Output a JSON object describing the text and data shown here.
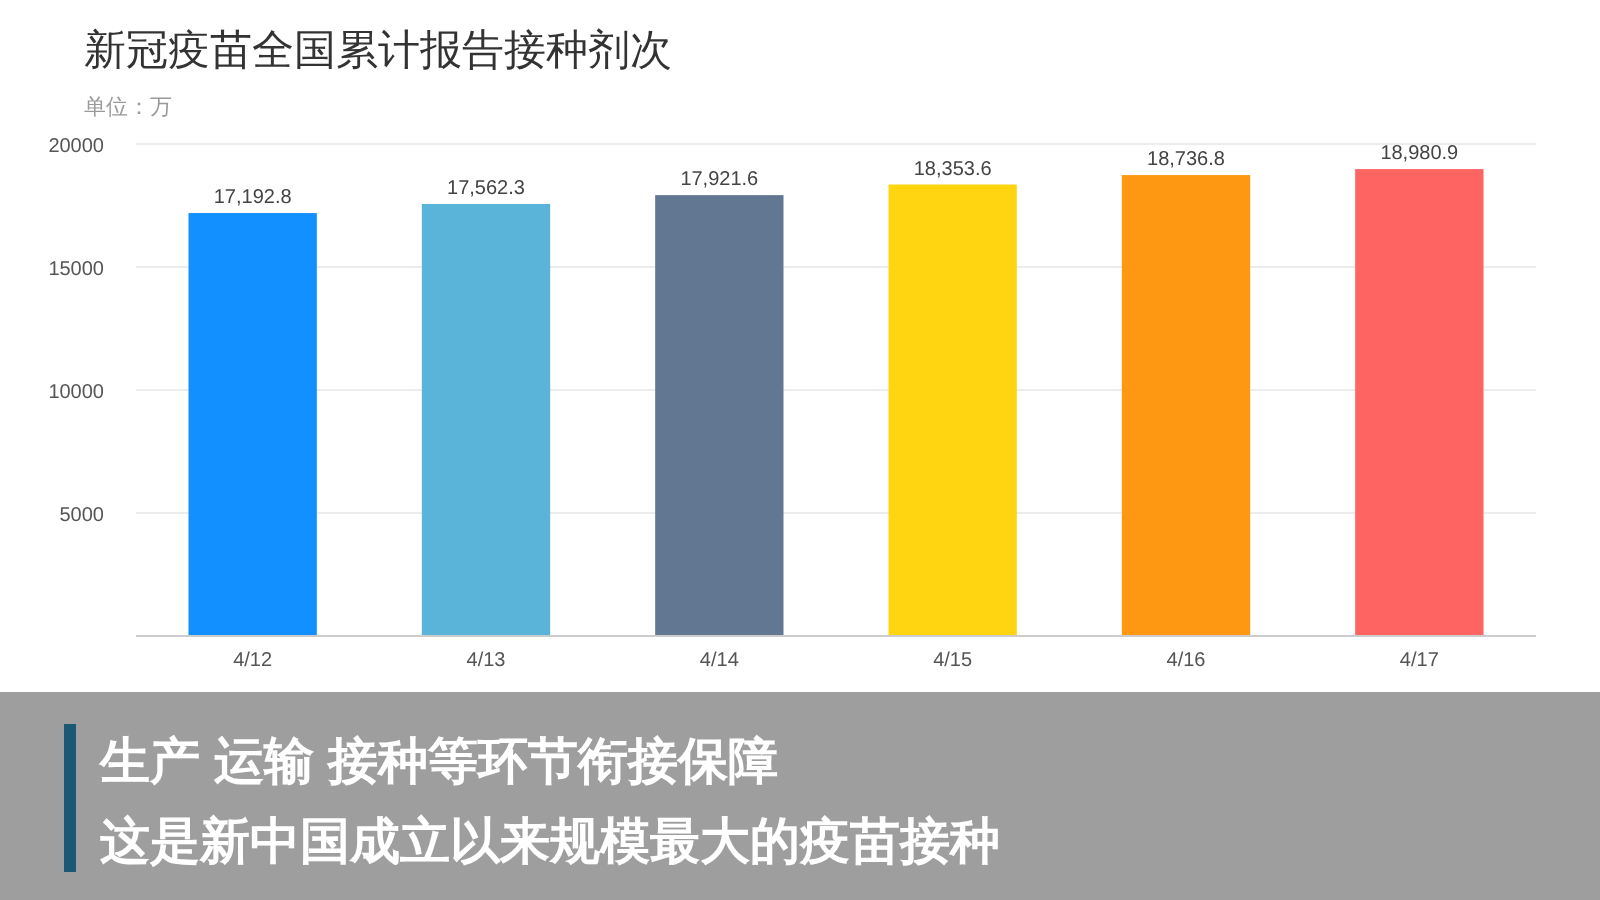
{
  "chart_data": {
    "type": "bar",
    "title": "新冠疫苗全国累计报告接种剂次",
    "subtitle": "单位：万",
    "categories": [
      "4/12",
      "4/13",
      "4/14",
      "4/15",
      "4/16",
      "4/17"
    ],
    "values": [
      17192.8,
      17562.3,
      17921.6,
      18353.6,
      18736.8,
      18980.9
    ],
    "colors": [
      "#1390ff",
      "#5ab4da",
      "#627791",
      "#fed510",
      "#fe9712",
      "#fe6462"
    ],
    "value_labels": [
      "17,192.8",
      "17,562.3",
      "17,921.6",
      "18,353.6",
      "18,736.8",
      "18,980.9"
    ],
    "ylim": [
      0,
      20000
    ],
    "yticks": [
      5000,
      10000,
      15000,
      20000
    ],
    "grid": "y",
    "annotations": [
      "生产 运输 接种等环节衔接保障",
      "这是新中国成立以来规模最大的疫苗接种"
    ]
  }
}
